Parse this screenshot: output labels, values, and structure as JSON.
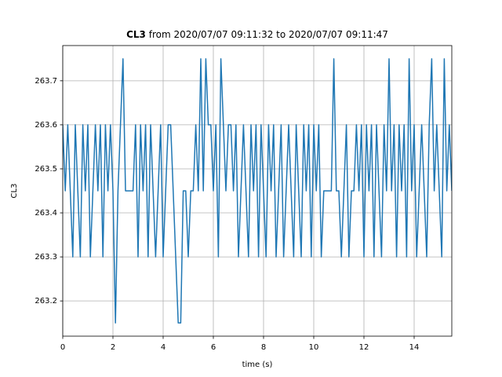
{
  "chart_data": {
    "type": "line",
    "title": {
      "bold": "CL3",
      "rest": "from 2020/07/07 09:11:32 to 2020/07/07 09:11:47"
    },
    "xlabel": "time (s)",
    "ylabel": "CL3",
    "xlim": [
      0,
      15.5
    ],
    "ylim": [
      263.12,
      263.78
    ],
    "xticks": [
      0,
      2,
      4,
      6,
      8,
      10,
      12,
      14
    ],
    "yticks": [
      263.2,
      263.3,
      263.4,
      263.5,
      263.6,
      263.7
    ],
    "grid": true,
    "series": [
      {
        "name": "CL3",
        "color": "#1f77b4",
        "x": [
          0,
          0.1,
          0.2,
          0.3,
          0.4,
          0.5,
          0.6,
          0.7,
          0.8,
          0.9,
          1,
          1.1,
          1.2,
          1.3,
          1.4,
          1.5,
          1.6,
          1.7,
          1.8,
          1.9,
          2,
          2.1,
          2.2,
          2.3,
          2.4,
          2.5,
          2.6,
          2.7,
          2.8,
          2.9,
          3,
          3.1,
          3.2,
          3.3,
          3.4,
          3.5,
          3.6,
          3.7,
          3.8,
          3.9,
          4,
          4.1,
          4.2,
          4.3,
          4.4,
          4.5,
          4.6,
          4.7,
          4.8,
          4.9,
          5,
          5.1,
          5.2,
          5.3,
          5.4,
          5.5,
          5.6,
          5.7,
          5.8,
          5.9,
          6,
          6.1,
          6.2,
          6.3,
          6.4,
          6.5,
          6.6,
          6.7,
          6.8,
          6.9,
          7,
          7.1,
          7.2,
          7.3,
          7.4,
          7.5,
          7.6,
          7.7,
          7.8,
          7.9,
          8,
          8.1,
          8.2,
          8.3,
          8.4,
          8.5,
          8.6,
          8.7,
          8.8,
          8.9,
          9,
          9.1,
          9.2,
          9.3,
          9.4,
          9.5,
          9.6,
          9.7,
          9.8,
          9.9,
          10,
          10.1,
          10.2,
          10.3,
          10.4,
          10.5,
          10.6,
          10.7,
          10.8,
          10.9,
          11,
          11.1,
          11.2,
          11.3,
          11.4,
          11.5,
          11.6,
          11.7,
          11.8,
          11.9,
          12,
          12.1,
          12.2,
          12.3,
          12.4,
          12.5,
          12.6,
          12.7,
          12.8,
          12.9,
          13,
          13.1,
          13.2,
          13.3,
          13.4,
          13.5,
          13.6,
          13.7,
          13.8,
          13.9,
          14,
          14.1,
          14.2,
          14.3,
          14.4,
          14.5,
          14.6,
          14.7,
          14.8,
          14.9,
          15,
          15.1,
          15.2,
          15.3,
          15.4,
          15.5
        ],
        "values": [
          263.6,
          263.45,
          263.6,
          263.45,
          263.3,
          263.6,
          263.45,
          263.3,
          263.6,
          263.45,
          263.6,
          263.3,
          263.45,
          263.6,
          263.45,
          263.6,
          263.3,
          263.6,
          263.45,
          263.6,
          263.45,
          263.15,
          263.45,
          263.6,
          263.75,
          263.45,
          263.45,
          263.45,
          263.45,
          263.6,
          263.3,
          263.6,
          263.45,
          263.6,
          263.3,
          263.6,
          263.45,
          263.3,
          263.45,
          263.6,
          263.3,
          263.45,
          263.6,
          263.6,
          263.45,
          263.3,
          263.15,
          263.15,
          263.45,
          263.45,
          263.3,
          263.45,
          263.45,
          263.6,
          263.45,
          263.75,
          263.45,
          263.75,
          263.6,
          263.6,
          263.45,
          263.6,
          263.3,
          263.75,
          263.6,
          263.45,
          263.6,
          263.6,
          263.45,
          263.6,
          263.3,
          263.45,
          263.6,
          263.45,
          263.3,
          263.6,
          263.45,
          263.6,
          263.3,
          263.6,
          263.45,
          263.3,
          263.6,
          263.45,
          263.6,
          263.3,
          263.45,
          263.6,
          263.3,
          263.45,
          263.6,
          263.45,
          263.3,
          263.6,
          263.45,
          263.3,
          263.6,
          263.45,
          263.6,
          263.3,
          263.6,
          263.45,
          263.6,
          263.3,
          263.45,
          263.45,
          263.45,
          263.45,
          263.75,
          263.45,
          263.45,
          263.3,
          263.45,
          263.6,
          263.3,
          263.45,
          263.45,
          263.6,
          263.45,
          263.6,
          263.3,
          263.6,
          263.45,
          263.6,
          263.3,
          263.6,
          263.45,
          263.3,
          263.6,
          263.45,
          263.75,
          263.45,
          263.6,
          263.3,
          263.6,
          263.45,
          263.6,
          263.3,
          263.75,
          263.45,
          263.6,
          263.3,
          263.45,
          263.6,
          263.45,
          263.3,
          263.6,
          263.75,
          263.45,
          263.6,
          263.45,
          263.3,
          263.75,
          263.45,
          263.6,
          263.45
        ]
      }
    ]
  }
}
